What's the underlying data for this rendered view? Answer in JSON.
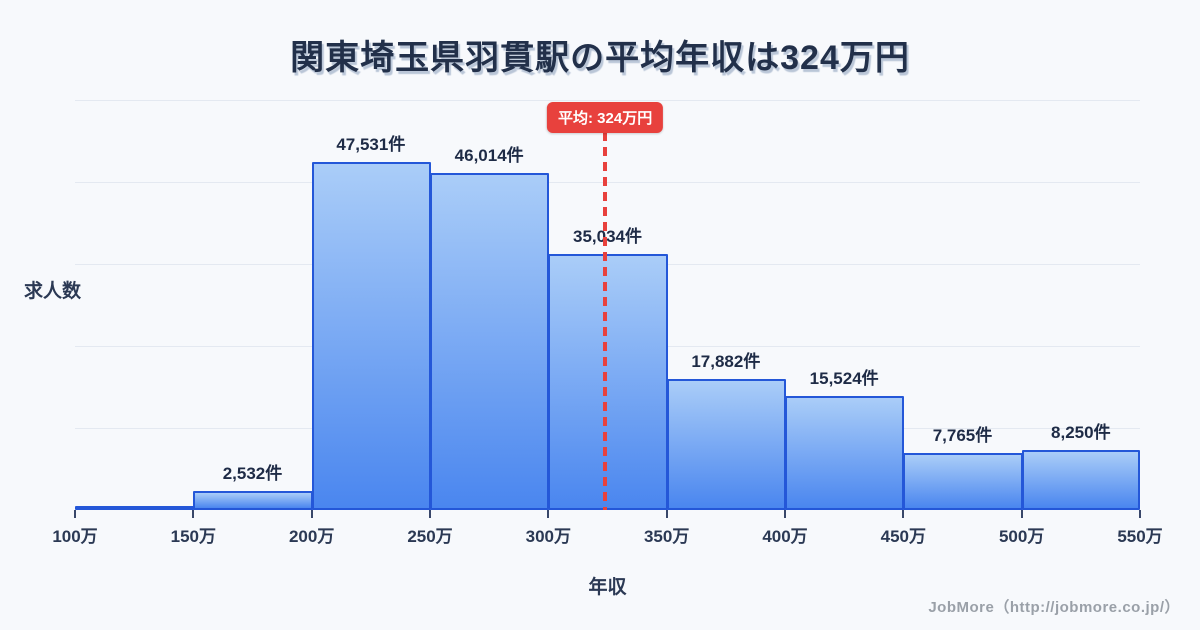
{
  "page": {
    "title": "関東埼玉県羽貫駅の平均年収は324万円",
    "y_axis_label": "求人数",
    "x_axis_label": "年収",
    "average_badge": "平均: 324万円",
    "footer_credit": "JobMore（http://jobmore.co.jp/）"
  },
  "chart_data": {
    "type": "bar",
    "subtype": "histogram",
    "title": "関東埼玉県羽貫駅の平均年収は324万円",
    "xlabel": "年収",
    "ylabel": "求人数",
    "unit": "件",
    "x_tick_labels": [
      "100万",
      "150万",
      "200万",
      "250万",
      "300万",
      "350万",
      "400万",
      "450万",
      "500万",
      "550万"
    ],
    "x_range_man_yen": [
      100,
      550
    ],
    "bin_width_man_yen": 50,
    "values": [
      250,
      2532,
      47531,
      46014,
      35034,
      17882,
      15524,
      7765,
      8250
    ],
    "value_labels": [
      "",
      "2,532件",
      "47,531件",
      "46,014件",
      "35,034件",
      "17,882件",
      "15,524件",
      "7,765件",
      "8,250件"
    ],
    "average_man_yen": 324,
    "average_label": "平均: 324万円",
    "ylim": [
      0,
      56000
    ],
    "gridline_count": 5,
    "grid": "horizontal",
    "legend": "none",
    "colors": {
      "background": "#f7f9fc",
      "title_text": "#22304a",
      "bar_fill_top": "#aacdf8",
      "bar_fill_bottom": "#4a86ef",
      "bar_border": "#2457d8",
      "value_label_text": "#1e2b46",
      "axis_text": "#2b3954",
      "tick": "#39476a",
      "gridline": "#e4e9f1",
      "average_red": "#e8413d",
      "badge_text": "#ffffff",
      "footer_text": "#9aa0a8"
    }
  }
}
